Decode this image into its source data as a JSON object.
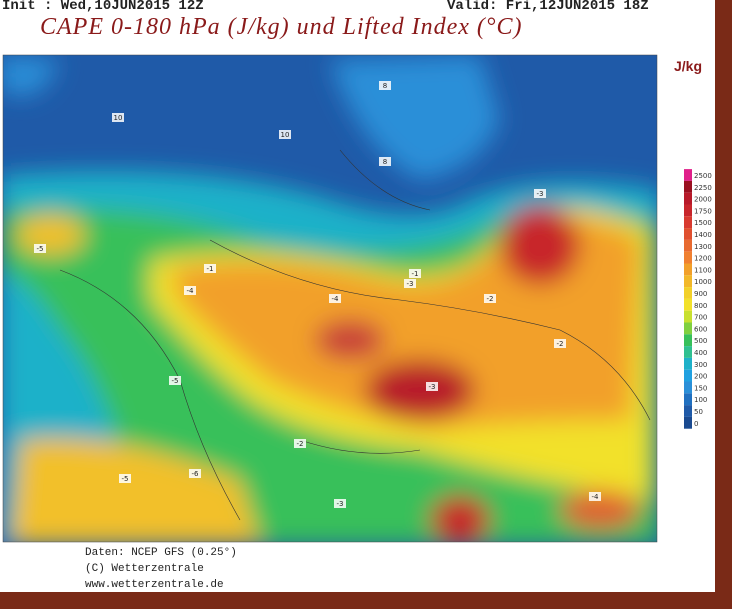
{
  "header": {
    "init": "Init : Wed,10JUN2015 12Z",
    "valid": "Valid: Fri,12JUN2015 18Z",
    "title": "CAPE 0-180 hPa (J/kg) und Lifted Index (°C)"
  },
  "legend": {
    "unit": "J/kg",
    "levels": [
      2500,
      2250,
      2000,
      1750,
      1500,
      1400,
      1300,
      1200,
      1100,
      1000,
      900,
      800,
      700,
      600,
      500,
      400,
      300,
      200,
      150,
      100,
      50,
      0
    ]
  },
  "map": {
    "labels": [
      "10",
      "10",
      "8",
      "8",
      "-1",
      "-3",
      "-3",
      "-5",
      "-4",
      "-4",
      "-5",
      "-3",
      "-2",
      "-2",
      "-1",
      "-6",
      "-5",
      "-3",
      "-4",
      "-2"
    ]
  },
  "footer": [
    "Daten: NCEP GFS (0.25°)",
    "(C) Wetterzentrale",
    "www.wetterzentrale.de"
  ]
}
